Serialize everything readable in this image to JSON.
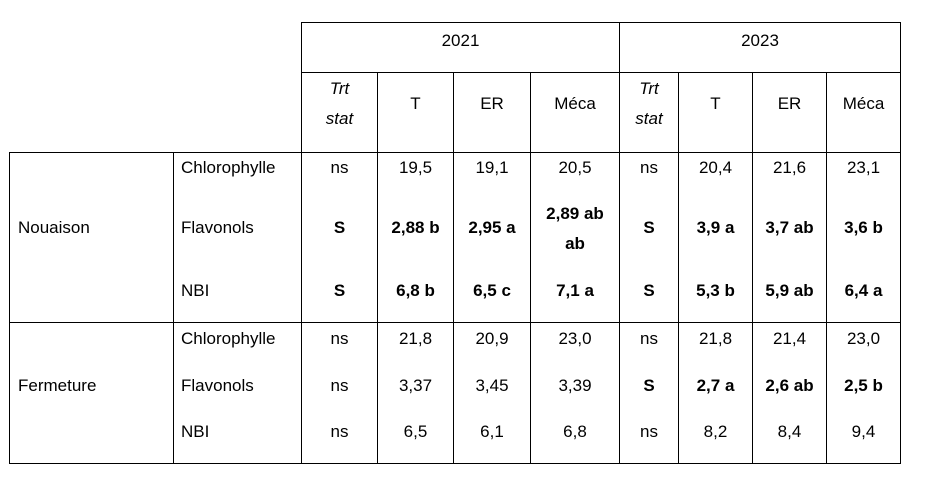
{
  "years": [
    "2021",
    "2023"
  ],
  "col_headers": {
    "trt_line1": "Trt",
    "trt_line2": "stat",
    "t": "T",
    "er": "ER",
    "meca": "Méca"
  },
  "stages": [
    "Nouaison",
    "Fermeture"
  ],
  "rows": [
    {
      "param": "Chlorophylle",
      "v": [
        "ns",
        "19,5",
        "19,1",
        "20,5",
        "ns",
        "20,4",
        "21,6",
        "23,1"
      ]
    },
    {
      "param": "Flavonols",
      "v": [
        "S",
        "2,88 b",
        "2,95 a",
        "2,89 ab",
        "S",
        "3,9 a",
        "3,7 ab",
        "3,6 b"
      ],
      "extra": "ab"
    },
    {
      "param": "NBI",
      "v": [
        "S",
        "6,8 b",
        "6,5 c",
        "7,1 a",
        "S",
        "5,3 b",
        "5,9 ab",
        "6,4 a"
      ]
    },
    {
      "param": "Chlorophylle",
      "v": [
        "ns",
        "21,8",
        "20,9",
        "23,0",
        "ns",
        "21,8",
        "21,4",
        "23,0"
      ]
    },
    {
      "param": "Flavonols",
      "v": [
        "ns",
        "3,37",
        "3,45",
        "3,39",
        "S",
        "2,7 a",
        "2,6 ab",
        "2,5 b"
      ]
    },
    {
      "param": "NBI",
      "v": [
        "ns",
        "6,5",
        "6,1",
        "6,8",
        "ns",
        "8,2",
        "8,4",
        "9,4"
      ]
    }
  ]
}
